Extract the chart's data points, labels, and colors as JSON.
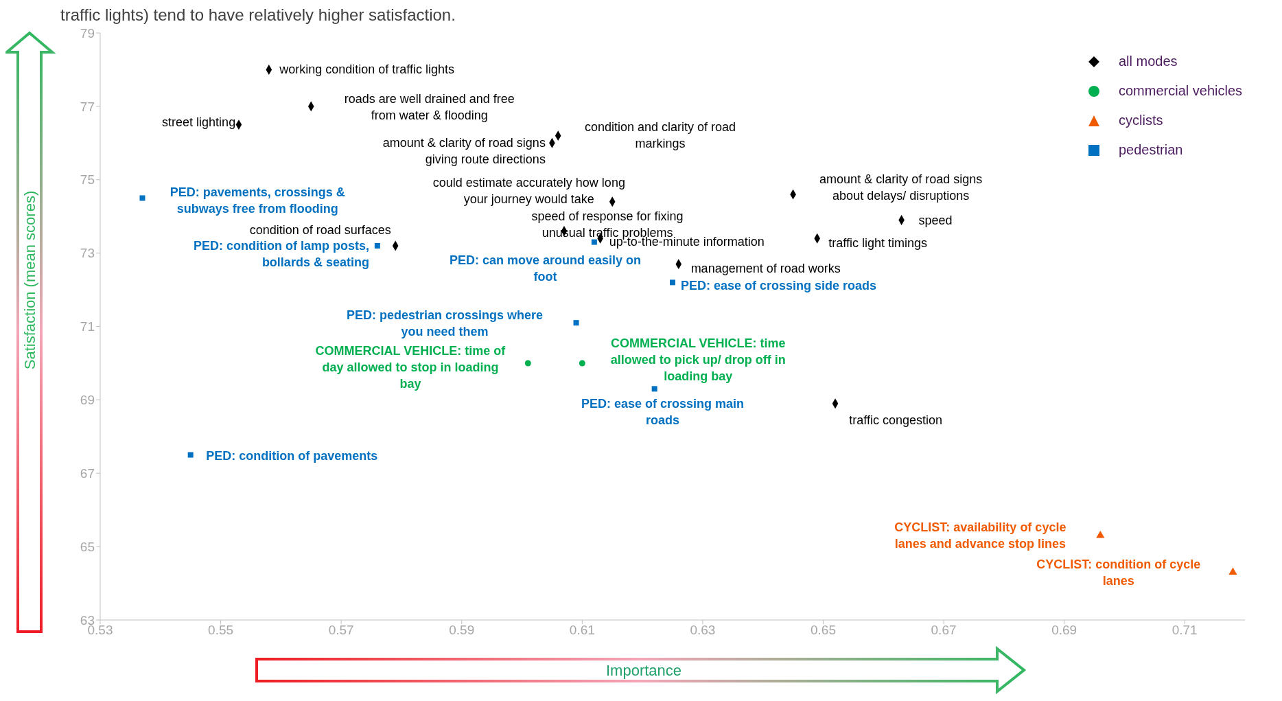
{
  "chart_data": {
    "type": "scatter",
    "title": "traffic lights) tend to have relatively higher satisfaction.",
    "xlabel": "Importance",
    "ylabel": "Satisfaction (mean scores)",
    "xlim": [
      0.53,
      0.72
    ],
    "xticks": [
      0.53,
      0.55,
      0.57,
      0.59,
      0.61,
      0.63,
      0.65,
      0.67,
      0.69,
      0.71
    ],
    "ylim": [
      63,
      79
    ],
    "yticks": [
      63,
      65,
      67,
      69,
      71,
      73,
      75,
      77,
      79
    ],
    "grid": false,
    "legend": "top right",
    "series": [
      {
        "name": "all modes",
        "color": "#000000",
        "marker": "diamond",
        "x": [
          0.558,
          0.565,
          0.553,
          0.605,
          0.606,
          0.615,
          0.645,
          0.663,
          0.649,
          0.607,
          0.613,
          0.579,
          0.626,
          0.652
        ],
        "values": [
          78.0,
          77.0,
          76.5,
          76.0,
          76.2,
          74.4,
          74.6,
          73.9,
          73.4,
          73.6,
          73.4,
          73.2,
          72.7,
          68.9
        ]
      },
      {
        "name": "commercial vehicles",
        "color": "#00b050",
        "marker": "circle",
        "x": [
          0.601,
          0.61
        ],
        "values": [
          70.0,
          70.0
        ]
      },
      {
        "name": "cyclists",
        "color": "#f05a00",
        "marker": "triangle",
        "x": [
          0.696,
          0.718
        ],
        "values": [
          65.3,
          64.3
        ]
      },
      {
        "name": "pedestrian",
        "color": "#0070c0",
        "marker": "square",
        "x": [
          0.537,
          0.576,
          0.612,
          0.625,
          0.609,
          0.622,
          0.545
        ],
        "values": [
          74.5,
          73.2,
          73.3,
          72.2,
          71.1,
          69.3,
          67.5
        ]
      }
    ],
    "annotations": [
      {
        "text": "working condition of traffic lights",
        "x": 0.558,
        "y": 78.0
      },
      {
        "text": "roads are well drained and free\nfrom water & flooding",
        "x": 0.565,
        "y": 77.0
      },
      {
        "text": "street lighting",
        "x": 0.553,
        "y": 76.5
      },
      {
        "text": "amount & clarity of road signs\ngiving route directions",
        "x": 0.605,
        "y": 76.0
      },
      {
        "text": "condition and clarity of road\nmarkings",
        "x": 0.606,
        "y": 76.2
      },
      {
        "text": "could estimate accurately how long\nyour journey would take",
        "x": 0.615,
        "y": 74.4
      },
      {
        "text": "amount & clarity of road signs\nabout delays/ disruptions",
        "x": 0.645,
        "y": 74.6
      },
      {
        "text": "speed",
        "x": 0.663,
        "y": 73.9
      },
      {
        "text": "traffic light timings",
        "x": 0.649,
        "y": 73.4
      },
      {
        "text": "speed of response for fixing\nunusual traffic problems",
        "x": 0.607,
        "y": 73.6
      },
      {
        "text": "up-to-the-minute information",
        "x": 0.613,
        "y": 73.4
      },
      {
        "text": "condition of road surfaces",
        "x": 0.579,
        "y": 73.2
      },
      {
        "text": "management of road works",
        "x": 0.626,
        "y": 72.7
      },
      {
        "text": "traffic congestion",
        "x": 0.652,
        "y": 68.9
      },
      {
        "text": "COMMERCIAL VEHICLE: time of\nday allowed to stop in loading\nbay",
        "x": 0.601,
        "y": 70.0
      },
      {
        "text": "COMMERCIAL VEHICLE: time\nallowed to pick up/ drop off in\nloading bay",
        "x": 0.61,
        "y": 70.0
      },
      {
        "text": "PED: pavements, crossings &\nsubways free from flooding",
        "x": 0.537,
        "y": 74.5
      },
      {
        "text": "PED: condition of lamp posts,\nbollards & seating",
        "x": 0.576,
        "y": 73.2
      },
      {
        "text": "PED: can move around easily on\nfoot",
        "x": 0.612,
        "y": 73.3
      },
      {
        "text": "PED: ease of crossing side roads",
        "x": 0.625,
        "y": 72.2
      },
      {
        "text": "PED: pedestrian crossings where\nyou need them",
        "x": 0.609,
        "y": 71.1
      },
      {
        "text": "PED: ease of crossing main\nroads",
        "x": 0.622,
        "y": 69.3
      },
      {
        "text": "PED: condition of pavements",
        "x": 0.545,
        "y": 67.5
      },
      {
        "text": "CYCLIST: availability of cycle\nlanes and advance stop lines",
        "x": 0.696,
        "y": 65.3
      },
      {
        "text": "CYCLIST: condition of cycle\nlanes",
        "x": 0.718,
        "y": 64.3
      }
    ]
  }
}
